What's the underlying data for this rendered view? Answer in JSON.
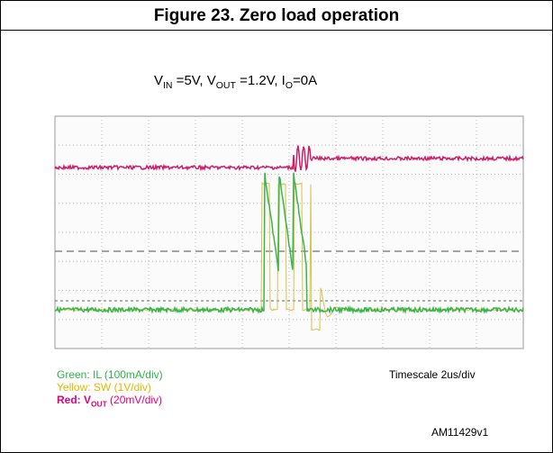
{
  "title": "Figure 23. Zero load operation",
  "conditions": [
    "V",
    "IN",
    " =5V, V",
    "OUT",
    " =1.2V, I",
    "O",
    "=0A"
  ],
  "legend": {
    "green": "Green: IL (100mA/div)",
    "yellow": "Yellow: SW (1V/div)",
    "red": [
      "Red: V",
      "OUT",
      " (20mV/div)"
    ]
  },
  "timescale": "Timescale 2us/div",
  "code": "AM11429v1"
}
